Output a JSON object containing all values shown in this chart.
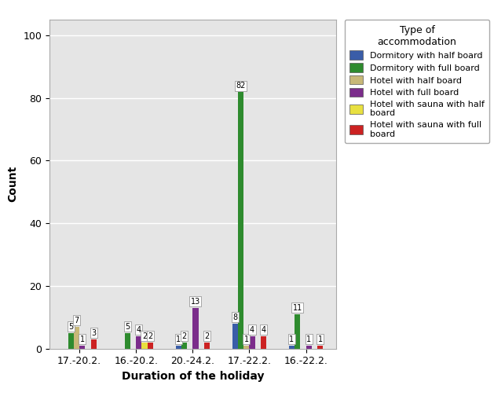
{
  "categories": [
    "17.-20.2.",
    "16.-20.2.",
    "20.-24.2.",
    "17.-22.2.",
    "16.-22.2."
  ],
  "series_order": [
    "Dormitory with half board",
    "Dormitory with full board",
    "Hotel with half board",
    "Hotel with full board",
    "Hotel with sauna with half board",
    "Hotel with sauna with full board"
  ],
  "series": {
    "Dormitory with half board": {
      "color": "#3a5da8",
      "values": [
        0,
        0,
        1,
        8,
        1
      ]
    },
    "Dormitory with full board": {
      "color": "#2e8b2e",
      "values": [
        5,
        5,
        2,
        82,
        11
      ]
    },
    "Hotel with half board": {
      "color": "#c8b878",
      "values": [
        7,
        0,
        0,
        1,
        0
      ]
    },
    "Hotel with full board": {
      "color": "#7b2d8b",
      "values": [
        1,
        4,
        13,
        4,
        1
      ]
    },
    "Hotel with sauna with half board": {
      "color": "#e8e040",
      "values": [
        0,
        2,
        0,
        0,
        0
      ]
    },
    "Hotel with sauna with full board": {
      "color": "#cc2222",
      "values": [
        3,
        2,
        2,
        4,
        1
      ]
    }
  },
  "legend_labels": [
    "Dormitory with half board",
    "Dormitory with full board",
    "Hotel with half board",
    "Hotel with full board",
    "Hotel with sauna with half board",
    "Hotel with sauna with full board"
  ],
  "xlabel": "Duration of the holiday",
  "ylabel": "Count",
  "ylim": [
    0,
    105
  ],
  "yticks": [
    0,
    20,
    40,
    60,
    80,
    100
  ],
  "legend_title": "Type of\naccommodation",
  "background_color": "#e5e5e5",
  "bar_width": 0.1,
  "figsize": [
    6.29,
    5.04
  ],
  "dpi": 100
}
